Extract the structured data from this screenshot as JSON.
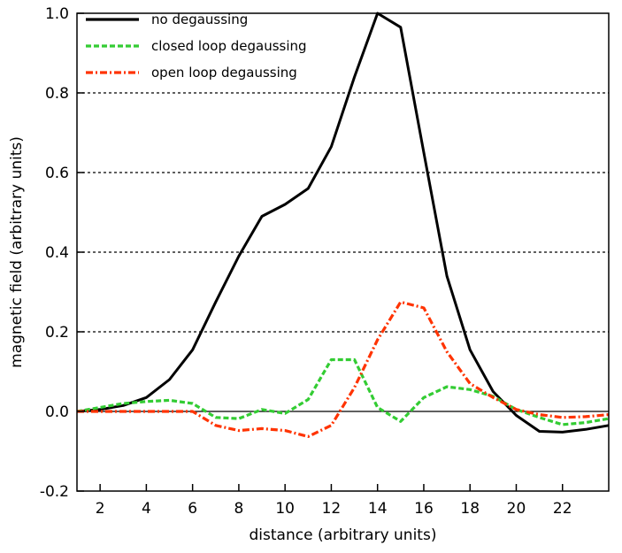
{
  "chart_data": {
    "type": "line",
    "xlabel": "distance (arbitrary units)",
    "ylabel": "magnetic field (arbitrary units)",
    "xlim": [
      1,
      24
    ],
    "ylim": [
      -0.2,
      1.0
    ],
    "xticks": [
      2,
      4,
      6,
      8,
      10,
      12,
      14,
      16,
      18,
      20,
      22
    ],
    "xtick_labels": [
      "2",
      "4",
      "6",
      "8",
      "10",
      "12",
      "14",
      "16",
      "18",
      "20",
      "22"
    ],
    "yticks": [
      -0.2,
      0.0,
      0.2,
      0.4,
      0.6,
      0.8,
      1.0
    ],
    "ytick_labels": [
      "-0.2",
      "0.0",
      "0.2",
      "0.4",
      "0.6",
      "0.8",
      "1.0"
    ],
    "grid": {
      "y": [
        0.2,
        0.4,
        0.6,
        0.8
      ],
      "style": "dashed"
    },
    "zero_line": true,
    "legend_position": "top-left",
    "x": [
      1,
      2,
      3,
      4,
      5,
      6,
      7,
      8,
      9,
      10,
      11,
      12,
      13,
      14,
      15,
      16,
      17,
      18,
      19,
      20,
      21,
      22,
      23,
      24
    ],
    "series": [
      {
        "name": "no degaussing",
        "color": "#000000",
        "style": "solid",
        "values": [
          0.0,
          0.005,
          0.015,
          0.035,
          0.08,
          0.155,
          0.275,
          0.39,
          0.49,
          0.52,
          0.56,
          0.665,
          0.84,
          1.0,
          0.965,
          0.65,
          0.34,
          0.155,
          0.05,
          -0.01,
          -0.05,
          -0.052,
          -0.045,
          -0.035
        ]
      },
      {
        "name": "closed loop degaussing",
        "color": "#33cc33",
        "style": "dashed",
        "values": [
          0.0,
          0.01,
          0.02,
          0.025,
          0.028,
          0.02,
          -0.015,
          -0.018,
          0.005,
          -0.005,
          0.03,
          0.13,
          0.13,
          0.01,
          -0.025,
          0.035,
          0.062,
          0.055,
          0.038,
          0.005,
          -0.015,
          -0.033,
          -0.028,
          -0.018
        ]
      },
      {
        "name": "open loop degaussing",
        "color": "#ff3300",
        "style": "dashdot",
        "values": [
          0.0,
          0.0,
          0.0,
          0.0,
          0.0,
          0.0,
          -0.035,
          -0.048,
          -0.043,
          -0.048,
          -0.063,
          -0.035,
          0.06,
          0.18,
          0.275,
          0.26,
          0.15,
          0.07,
          0.035,
          0.005,
          -0.008,
          -0.015,
          -0.013,
          -0.008
        ]
      }
    ]
  }
}
